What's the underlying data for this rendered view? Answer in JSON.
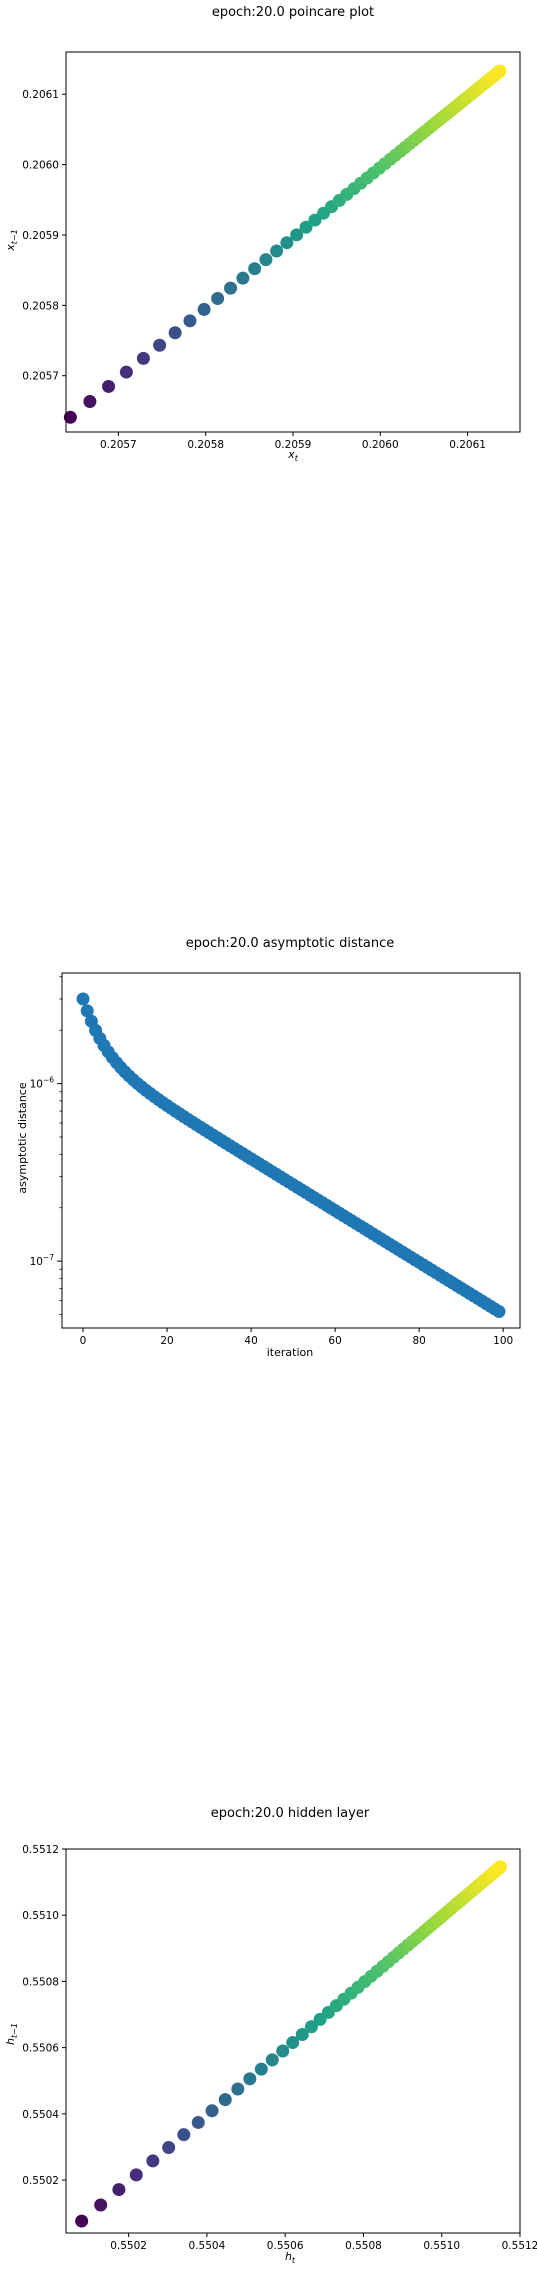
{
  "chart_data": [
    {
      "type": "scatter",
      "title": "epoch:20.0 poincare plot",
      "xlabel": "x_t",
      "ylabel": "x_{t-1}",
      "xlim": [
        0.20564,
        0.20616
      ],
      "ylim": [
        0.20562,
        0.20616
      ],
      "xticks": [
        "0.2057",
        "0.2058",
        "0.2059",
        "0.2060",
        "0.2061"
      ],
      "yticks": [
        "0.2057",
        "0.2058",
        "0.2059",
        "0.2060",
        "0.2061"
      ],
      "x_start": 0.205645,
      "x_end": 0.206137,
      "point_count": 100,
      "colormap": [
        "#440154",
        "#46327e",
        "#365c8d",
        "#277f8e",
        "#1fa187",
        "#4ac16d",
        "#a0da39",
        "#fde725"
      ],
      "grid": false
    },
    {
      "type": "scatter",
      "title": "epoch:20.0 asymptotic distance",
      "xlabel": "iteration",
      "ylabel": "asymptotic distance",
      "xlim": [
        -5,
        104
      ],
      "yscale": "log",
      "ylim": [
        4.2e-08,
        4.2e-06
      ],
      "xticks": [
        "0",
        "20",
        "40",
        "60",
        "80",
        "100"
      ],
      "yticks": [
        "10^{-6}",
        "10^{-7}"
      ],
      "y_first": 3e-06,
      "y_last": 5.2e-08,
      "point_count": 100,
      "color": "#1f77b4",
      "grid": false
    },
    {
      "type": "scatter",
      "title": "epoch:20.0 hidden layer",
      "xlabel": "h_t",
      "ylabel": "h_{t-1}",
      "xlim": [
        0.55004,
        0.5512
      ],
      "ylim": [
        0.55004,
        0.5512
      ],
      "xticks": [
        "0.5502",
        "0.5504",
        "0.5506",
        "0.5508",
        "0.5510",
        "0.5512"
      ],
      "yticks": [
        "0.5502",
        "0.5504",
        "0.5506",
        "0.5508",
        "0.5510",
        "0.5512"
      ],
      "x_start": 0.55008,
      "x_end": 0.55115,
      "point_count": 100,
      "colormap": [
        "#440154",
        "#46327e",
        "#365c8d",
        "#277f8e",
        "#1fa187",
        "#4ac16d",
        "#a0da39",
        "#fde725"
      ],
      "grid": false
    }
  ]
}
